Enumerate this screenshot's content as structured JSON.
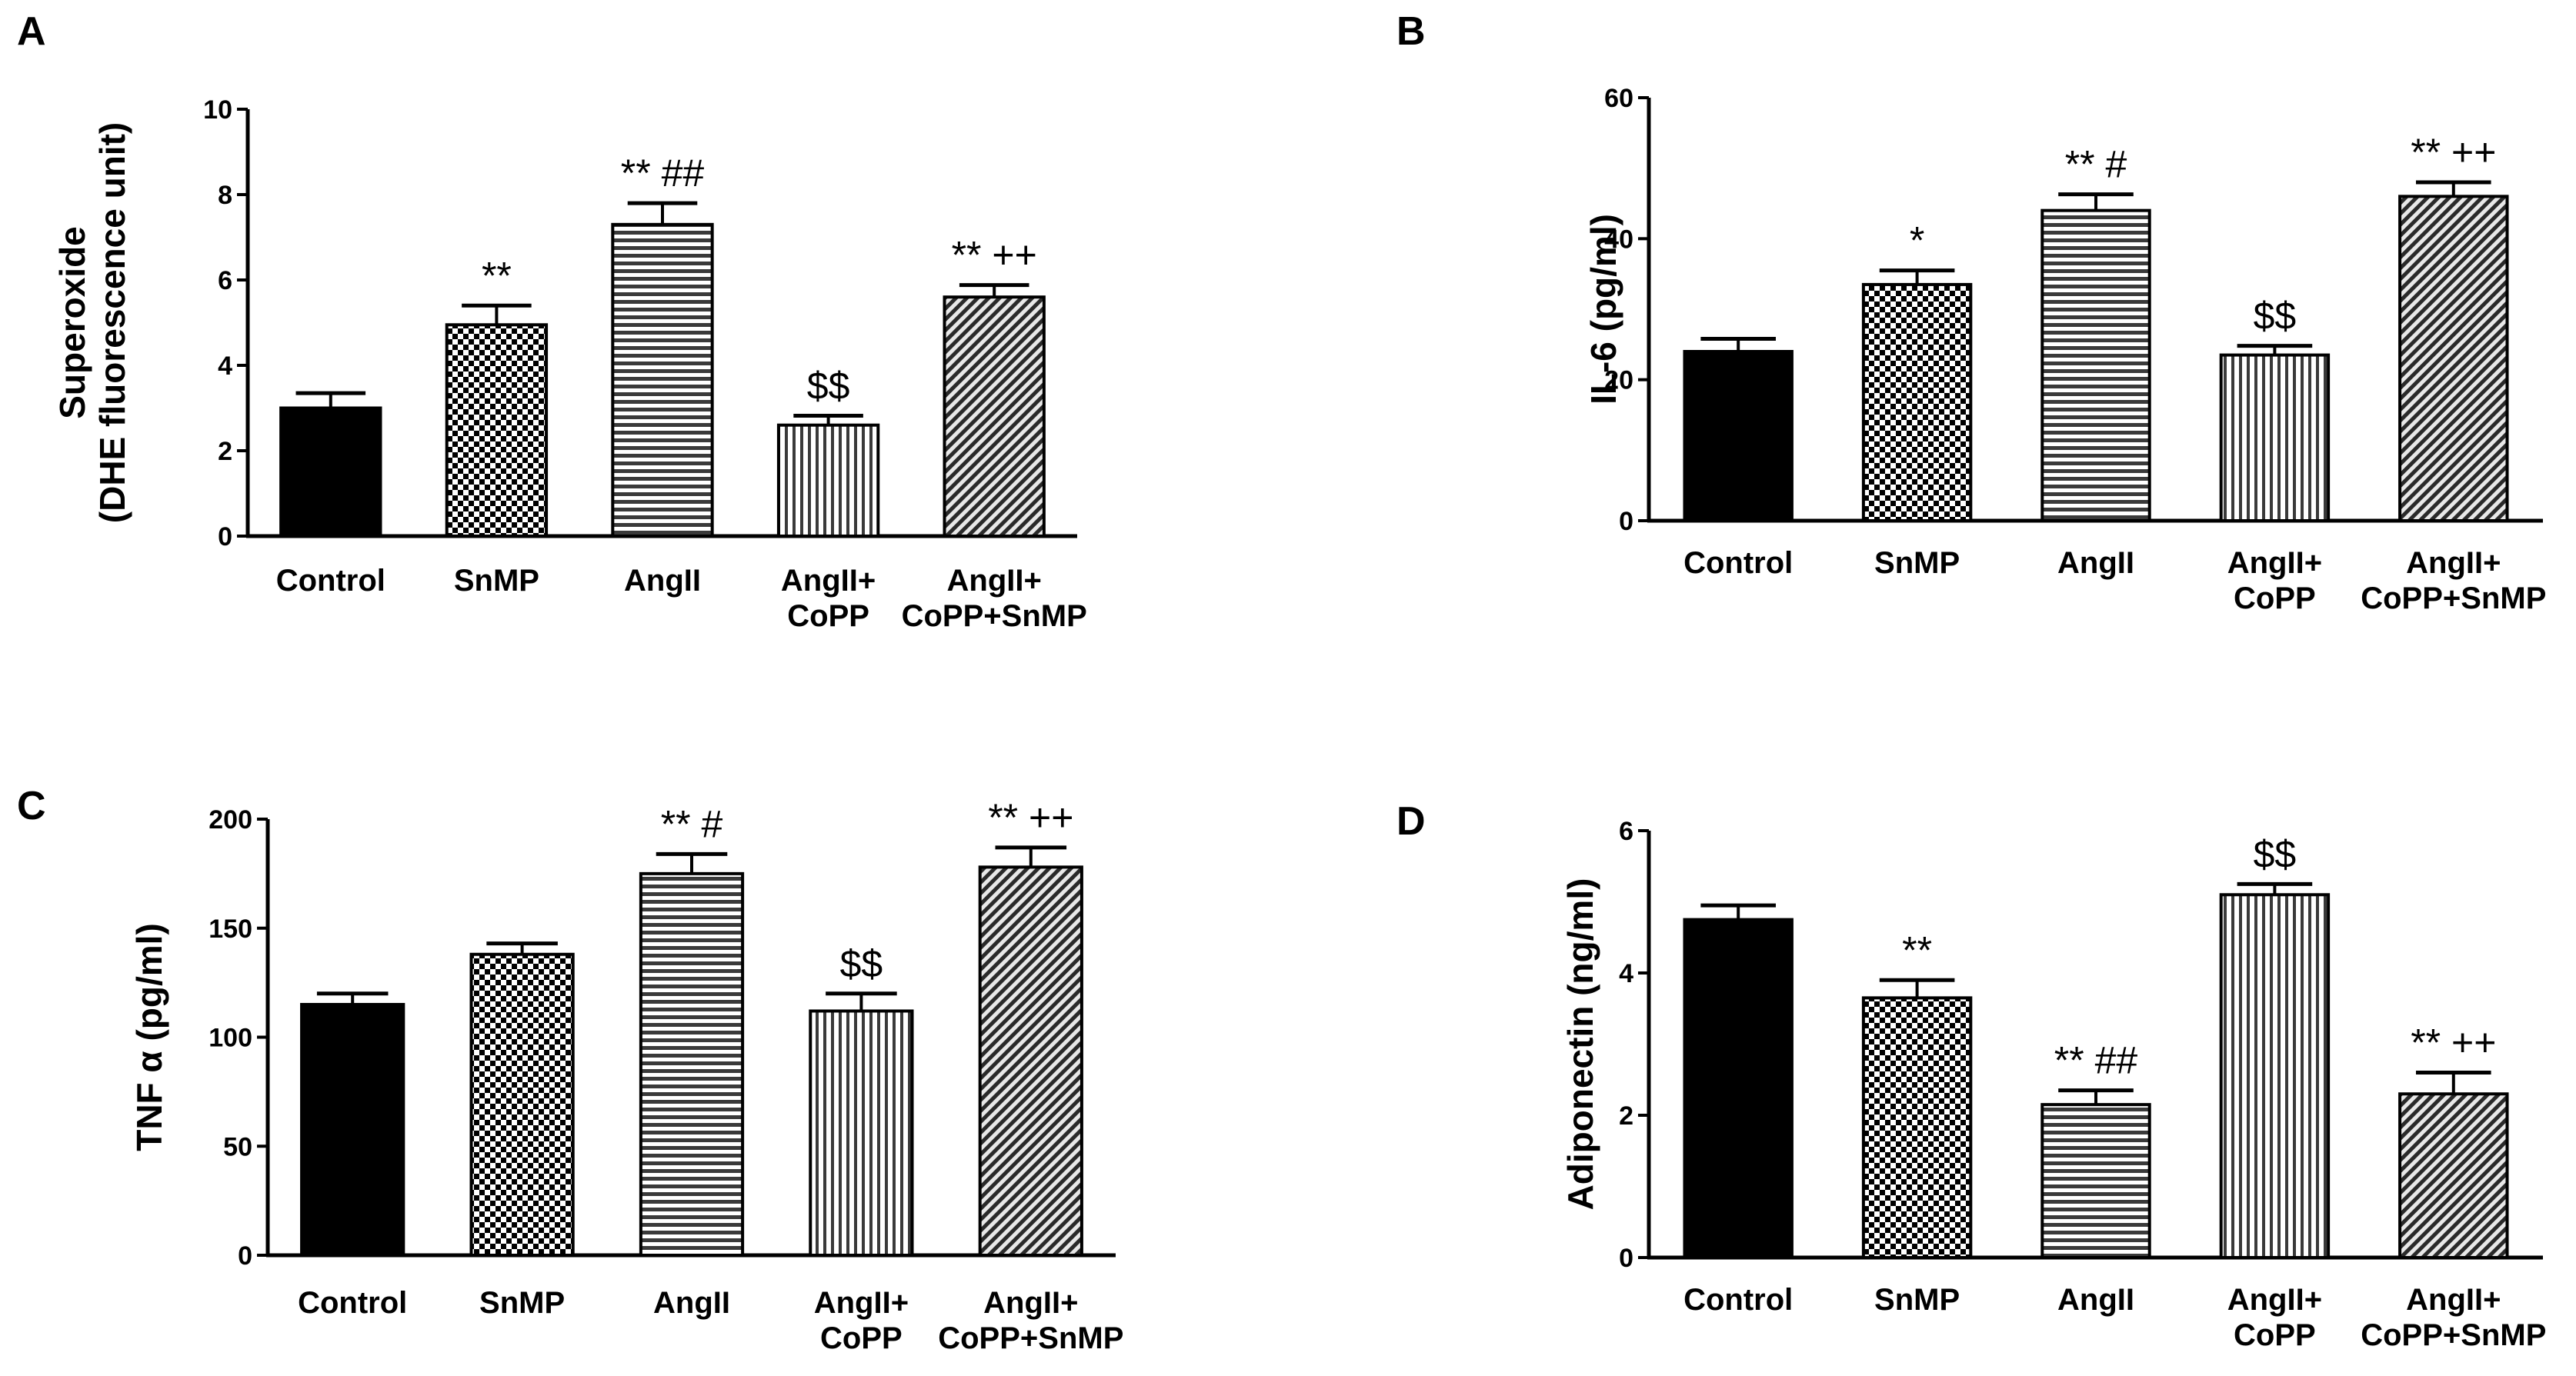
{
  "chart_data": [
    {
      "panel": "A",
      "type": "bar",
      "ylabel": [
        "Superoxide",
        "(DHE fluorescence unit)"
      ],
      "ylim": [
        0,
        10
      ],
      "yticks": [
        0,
        2,
        4,
        6,
        8,
        10
      ],
      "categories": [
        [
          "Control"
        ],
        [
          "SnMP"
        ],
        [
          "AngII"
        ],
        [
          "AngII+",
          "CoPP"
        ],
        [
          "AngII+",
          "CoPP+SnMP"
        ]
      ],
      "values": [
        3.0,
        4.95,
        7.3,
        2.6,
        5.6
      ],
      "errors": [
        0.35,
        0.45,
        0.5,
        0.22,
        0.28
      ],
      "annotations": [
        "",
        "**",
        "** ##",
        "$$",
        "** ++"
      ],
      "patterns": [
        "solid",
        "checker",
        "hlines",
        "vlines",
        "diagonal"
      ]
    },
    {
      "panel": "B",
      "type": "bar",
      "ylabel": [
        "IL-6 (pg/ml)"
      ],
      "ylim": [
        0,
        60
      ],
      "yticks": [
        0,
        20,
        40,
        60
      ],
      "categories": [
        [
          "Control"
        ],
        [
          "SnMP"
        ],
        [
          "AngII"
        ],
        [
          "AngII+",
          "CoPP"
        ],
        [
          "AngII+",
          "CoPP+SnMP"
        ]
      ],
      "values": [
        24.0,
        33.5,
        44.0,
        23.5,
        46.0
      ],
      "errors": [
        1.8,
        2.0,
        2.3,
        1.3,
        2.0
      ],
      "annotations": [
        "",
        "*",
        "**  #",
        "$$",
        "** ++"
      ],
      "patterns": [
        "solid",
        "checker",
        "hlines",
        "vlines",
        "diagonal"
      ]
    },
    {
      "panel": "C",
      "type": "bar",
      "ylabel": [
        "TNF α (pg/ml)"
      ],
      "ylim": [
        0,
        200
      ],
      "yticks": [
        0,
        50,
        100,
        150,
        200
      ],
      "categories": [
        [
          "Control"
        ],
        [
          "SnMP"
        ],
        [
          "AngII"
        ],
        [
          "AngII+",
          "CoPP"
        ],
        [
          "AngII+",
          "CoPP+SnMP"
        ]
      ],
      "values": [
        115,
        138,
        175,
        112,
        178
      ],
      "errors": [
        5,
        5,
        9,
        8,
        9
      ],
      "annotations": [
        "",
        "",
        "**  #",
        "$$",
        "** ++"
      ],
      "patterns": [
        "solid",
        "checker",
        "hlines",
        "vlines",
        "diagonal"
      ]
    },
    {
      "panel": "D",
      "type": "bar",
      "ylabel": [
        "Adiponectin (ng/ml)"
      ],
      "ylim": [
        0,
        6
      ],
      "yticks": [
        0,
        2,
        4,
        6
      ],
      "categories": [
        [
          "Control"
        ],
        [
          "SnMP"
        ],
        [
          "AngII"
        ],
        [
          "AngII+",
          "CoPP"
        ],
        [
          "AngII+",
          "CoPP+SnMP"
        ]
      ],
      "values": [
        4.75,
        3.65,
        2.15,
        5.1,
        2.3
      ],
      "errors": [
        0.2,
        0.25,
        0.2,
        0.15,
        0.3
      ],
      "annotations": [
        "",
        "**",
        "** ##",
        "$$",
        "** ++"
      ],
      "patterns": [
        "solid",
        "checker",
        "hlines",
        "vlines",
        "diagonal"
      ]
    }
  ]
}
